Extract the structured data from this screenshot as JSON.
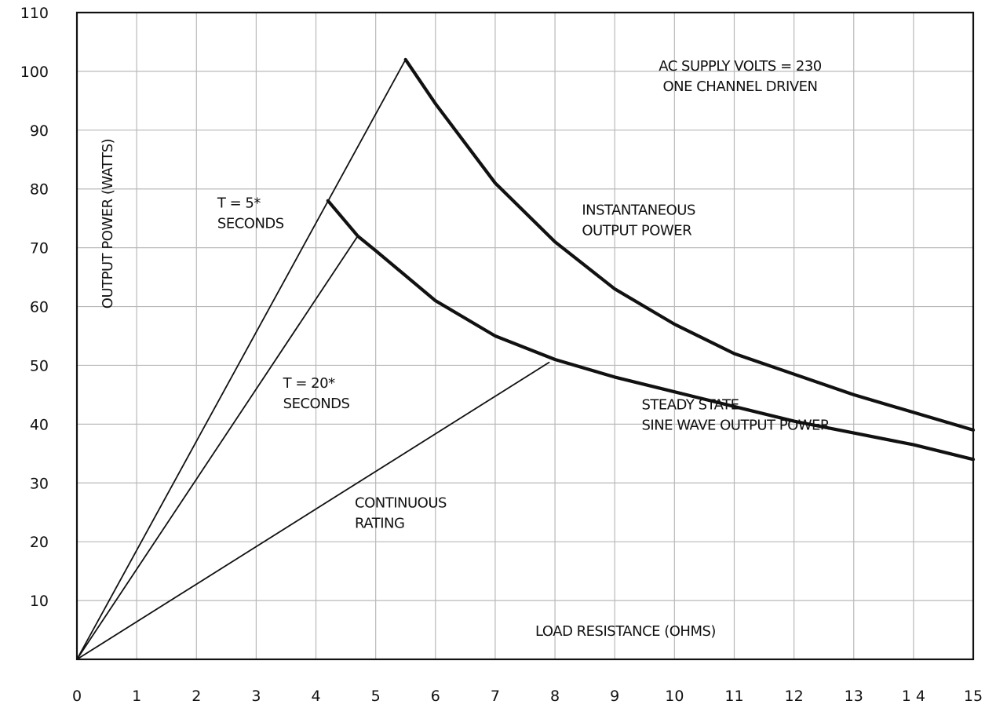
{
  "chart_data": {
    "type": "line",
    "xlim": [
      0,
      15
    ],
    "ylim": [
      0,
      110
    ],
    "x_ticks": [
      "0",
      "1",
      "2",
      "3",
      "4",
      "5",
      "6",
      "7",
      "8",
      "9",
      "10",
      "11",
      "12",
      "13",
      "1 4",
      "15"
    ],
    "y_ticks": [
      "10",
      "20",
      "30",
      "40",
      "50",
      "60",
      "70",
      "80",
      "90",
      "100",
      "110"
    ],
    "grid": true,
    "xlabel": "LOAD RESISTANCE (OHMS)",
    "ylabel": "OUTPUT POWER (WATTS)",
    "header": [
      "AC SUPPLY VOLTS = 230",
      "ONE CHANNEL DRIVEN"
    ],
    "series": [
      {
        "name": "INSTANTANEOUS OUTPUT POWER",
        "style": "bold",
        "x": [
          5.5,
          6,
          7,
          8,
          9,
          10,
          11,
          12,
          13,
          14,
          15
        ],
        "y": [
          102,
          94.5,
          81,
          71,
          63,
          57,
          52,
          48.5,
          45,
          42,
          39
        ]
      },
      {
        "name": "STEADY STATE SINE WAVE OUTPUT POWER",
        "style": "bold",
        "x": [
          4.2,
          4.7,
          5,
          6,
          7,
          8,
          9,
          10,
          11,
          12,
          13,
          14,
          15
        ],
        "y": [
          78,
          72,
          69.5,
          61,
          55,
          51,
          48,
          45.5,
          43,
          40.5,
          38.5,
          36.5,
          34
        ]
      },
      {
        "name": "T = 5* SECONDS",
        "style": "thin",
        "x": [
          0,
          5.5
        ],
        "y": [
          0,
          102
        ]
      },
      {
        "name": "T = 20* SECONDS",
        "style": "thin",
        "x": [
          0,
          4.7
        ],
        "y": [
          0,
          72
        ]
      },
      {
        "name": "CONTINUOUS RATING",
        "style": "thin",
        "x": [
          0,
          7.9
        ],
        "y": [
          0,
          50.5
        ]
      }
    ],
    "annotations": [
      {
        "lines": [
          "T = 5*",
          "SECONDS"
        ],
        "x": 2.35,
        "y": 76.8
      },
      {
        "lines": [
          "T = 20*",
          "SECONDS"
        ],
        "x": 3.45,
        "y": 46.2
      },
      {
        "lines": [
          "INSTANTANEOUS",
          "OUTPUT POWER"
        ],
        "x": 8.45,
        "y": 75.6
      },
      {
        "lines": [
          "STEADY STATE",
          "SINE WAVE OUTPUT POWER"
        ],
        "x": 9.45,
        "y": 42.5
      },
      {
        "lines": [
          "CONTINUOUS",
          "RATING"
        ],
        "x": 4.65,
        "y": 25.8
      }
    ]
  }
}
